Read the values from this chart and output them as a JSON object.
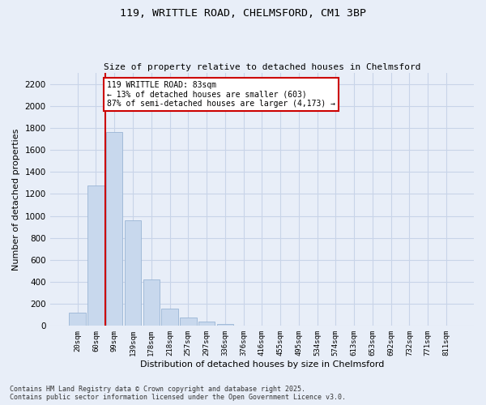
{
  "title_line1": "119, WRITTLE ROAD, CHELMSFORD, CM1 3BP",
  "title_line2": "Size of property relative to detached houses in Chelmsford",
  "xlabel": "Distribution of detached houses by size in Chelmsford",
  "ylabel": "Number of detached properties",
  "bar_color": "#c8d8ed",
  "bar_edge_color": "#9ab5d5",
  "categories": [
    "20sqm",
    "60sqm",
    "99sqm",
    "139sqm",
    "178sqm",
    "218sqm",
    "257sqm",
    "297sqm",
    "336sqm",
    "376sqm",
    "416sqm",
    "455sqm",
    "495sqm",
    "534sqm",
    "574sqm",
    "613sqm",
    "653sqm",
    "692sqm",
    "732sqm",
    "771sqm",
    "811sqm"
  ],
  "values": [
    120,
    1280,
    1760,
    960,
    420,
    155,
    75,
    38,
    20,
    0,
    0,
    0,
    0,
    0,
    0,
    0,
    0,
    0,
    0,
    0,
    0
  ],
  "ylim": [
    0,
    2300
  ],
  "yticks": [
    0,
    200,
    400,
    600,
    800,
    1000,
    1200,
    1400,
    1600,
    1800,
    2000,
    2200
  ],
  "property_line_x": 1.5,
  "annotation_title": "119 WRITTLE ROAD: 83sqm",
  "annotation_line1": "← 13% of detached houses are smaller (603)",
  "annotation_line2": "87% of semi-detached houses are larger (4,173) →",
  "annotation_box_color": "#ffffff",
  "annotation_box_edge": "#cc0000",
  "vline_color": "#cc0000",
  "grid_color": "#c8d4e8",
  "background_color": "#e8eef8",
  "footnote1": "Contains HM Land Registry data © Crown copyright and database right 2025.",
  "footnote2": "Contains public sector information licensed under the Open Government Licence v3.0."
}
